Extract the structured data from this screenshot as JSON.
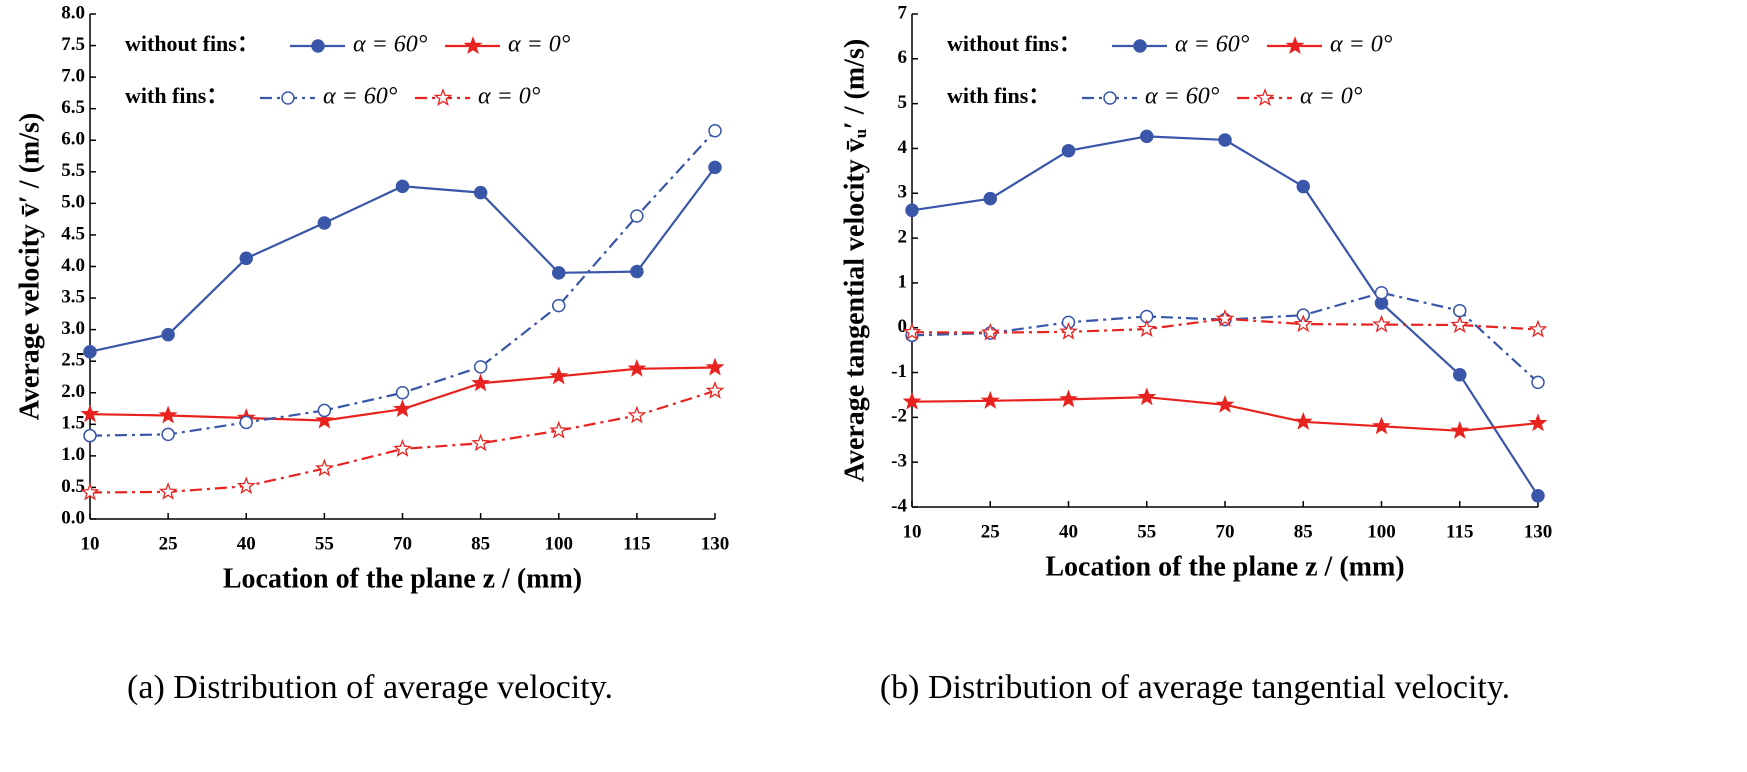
{
  "chart_data": [
    {
      "type": "line",
      "ylabel": "Average velocity v̄′ / (m/s)",
      "xlabel": "Location of the plane z / (mm)",
      "caption": "(a) Distribution of average velocity.",
      "legend_groups": [
        "without fins：",
        "with fins："
      ],
      "x": [
        10,
        25,
        40,
        55,
        70,
        85,
        100,
        115,
        130
      ],
      "xlim": [
        10,
        130
      ],
      "xticks": [
        10,
        25,
        40,
        55,
        70,
        85,
        100,
        115,
        130
      ],
      "ylim": [
        0,
        8
      ],
      "yticks": [
        {
          "value": 0,
          "label": "0.0"
        },
        0.5,
        {
          "value": 1,
          "label": "1.0"
        },
        1.5,
        {
          "value": 2,
          "label": "2.0"
        },
        2.5,
        {
          "value": 3,
          "label": "3.0"
        },
        3.5,
        {
          "value": 4,
          "label": "4.0"
        },
        4.5,
        {
          "value": 5,
          "label": "5.0"
        },
        5.5,
        {
          "value": 6,
          "label": "6.0"
        },
        6.5,
        {
          "value": 7,
          "label": "7.0"
        },
        7.5,
        {
          "value": 8,
          "label": "8.0"
        }
      ],
      "series": [
        {
          "name": "α = 60°",
          "color": "#3a56a8",
          "marker": "circle",
          "filled": true,
          "dash": "solid",
          "values": [
            2.65,
            2.92,
            4.13,
            4.69,
            5.27,
            5.17,
            3.9,
            3.92,
            5.57
          ]
        },
        {
          "name": "α = 0°",
          "color": "#e8231f",
          "marker": "star",
          "filled": true,
          "dash": "solid",
          "values": [
            1.66,
            1.64,
            1.6,
            1.56,
            1.74,
            2.15,
            2.26,
            2.38,
            2.4
          ]
        },
        {
          "name": "α = 60°",
          "color": "#3a56a8",
          "marker": "circle",
          "filled": false,
          "dash": "dashdot",
          "values": [
            1.32,
            1.34,
            1.53,
            1.72,
            2.0,
            2.41,
            3.38,
            4.8,
            6.15
          ]
        },
        {
          "name": "α = 0°",
          "color": "#e8231f",
          "marker": "star",
          "filled": false,
          "dash": "dashdot",
          "values": [
            0.42,
            0.43,
            0.52,
            0.8,
            1.11,
            1.2,
            1.4,
            1.64,
            2.03
          ]
        }
      ]
    },
    {
      "type": "line",
      "ylabel": "Average tangential velocity v̄ᵤ′ / (m/s)",
      "xlabel": "Location of the plane z / (mm)",
      "caption": "(b) Distribution of average tangential velocity.",
      "legend_groups": [
        "without fins：",
        "with fins："
      ],
      "x": [
        10,
        25,
        40,
        55,
        70,
        85,
        100,
        115,
        130
      ],
      "xlim": [
        10,
        130
      ],
      "xticks": [
        10,
        25,
        40,
        55,
        70,
        85,
        100,
        115,
        130
      ],
      "ylim": [
        -4,
        7
      ],
      "yticks": [
        -4,
        -3,
        -2,
        -1,
        0,
        1,
        2,
        3,
        4,
        5,
        6,
        7
      ],
      "series": [
        {
          "name": "α = 60°",
          "color": "#3a56a8",
          "marker": "circle",
          "filled": true,
          "dash": "solid",
          "values": [
            2.62,
            2.88,
            3.95,
            4.27,
            4.19,
            3.15,
            0.55,
            -1.05,
            -3.75
          ]
        },
        {
          "name": "α = 0°",
          "color": "#e8231f",
          "marker": "star",
          "filled": true,
          "dash": "solid",
          "values": [
            -1.65,
            -1.63,
            -1.6,
            -1.55,
            -1.72,
            -2.1,
            -2.2,
            -2.3,
            -2.13
          ]
        },
        {
          "name": "α = 60°",
          "color": "#3a56a8",
          "marker": "circle",
          "filled": false,
          "dash": "dashdot",
          "values": [
            -0.17,
            -0.12,
            0.12,
            0.25,
            0.18,
            0.28,
            0.78,
            0.38,
            -1.22
          ]
        },
        {
          "name": "α = 0°",
          "color": "#e8231f",
          "marker": "star",
          "filled": false,
          "dash": "dashdot",
          "values": [
            -0.1,
            -0.11,
            -0.09,
            -0.03,
            0.2,
            0.08,
            0.07,
            0.06,
            -0.04
          ]
        }
      ]
    }
  ]
}
